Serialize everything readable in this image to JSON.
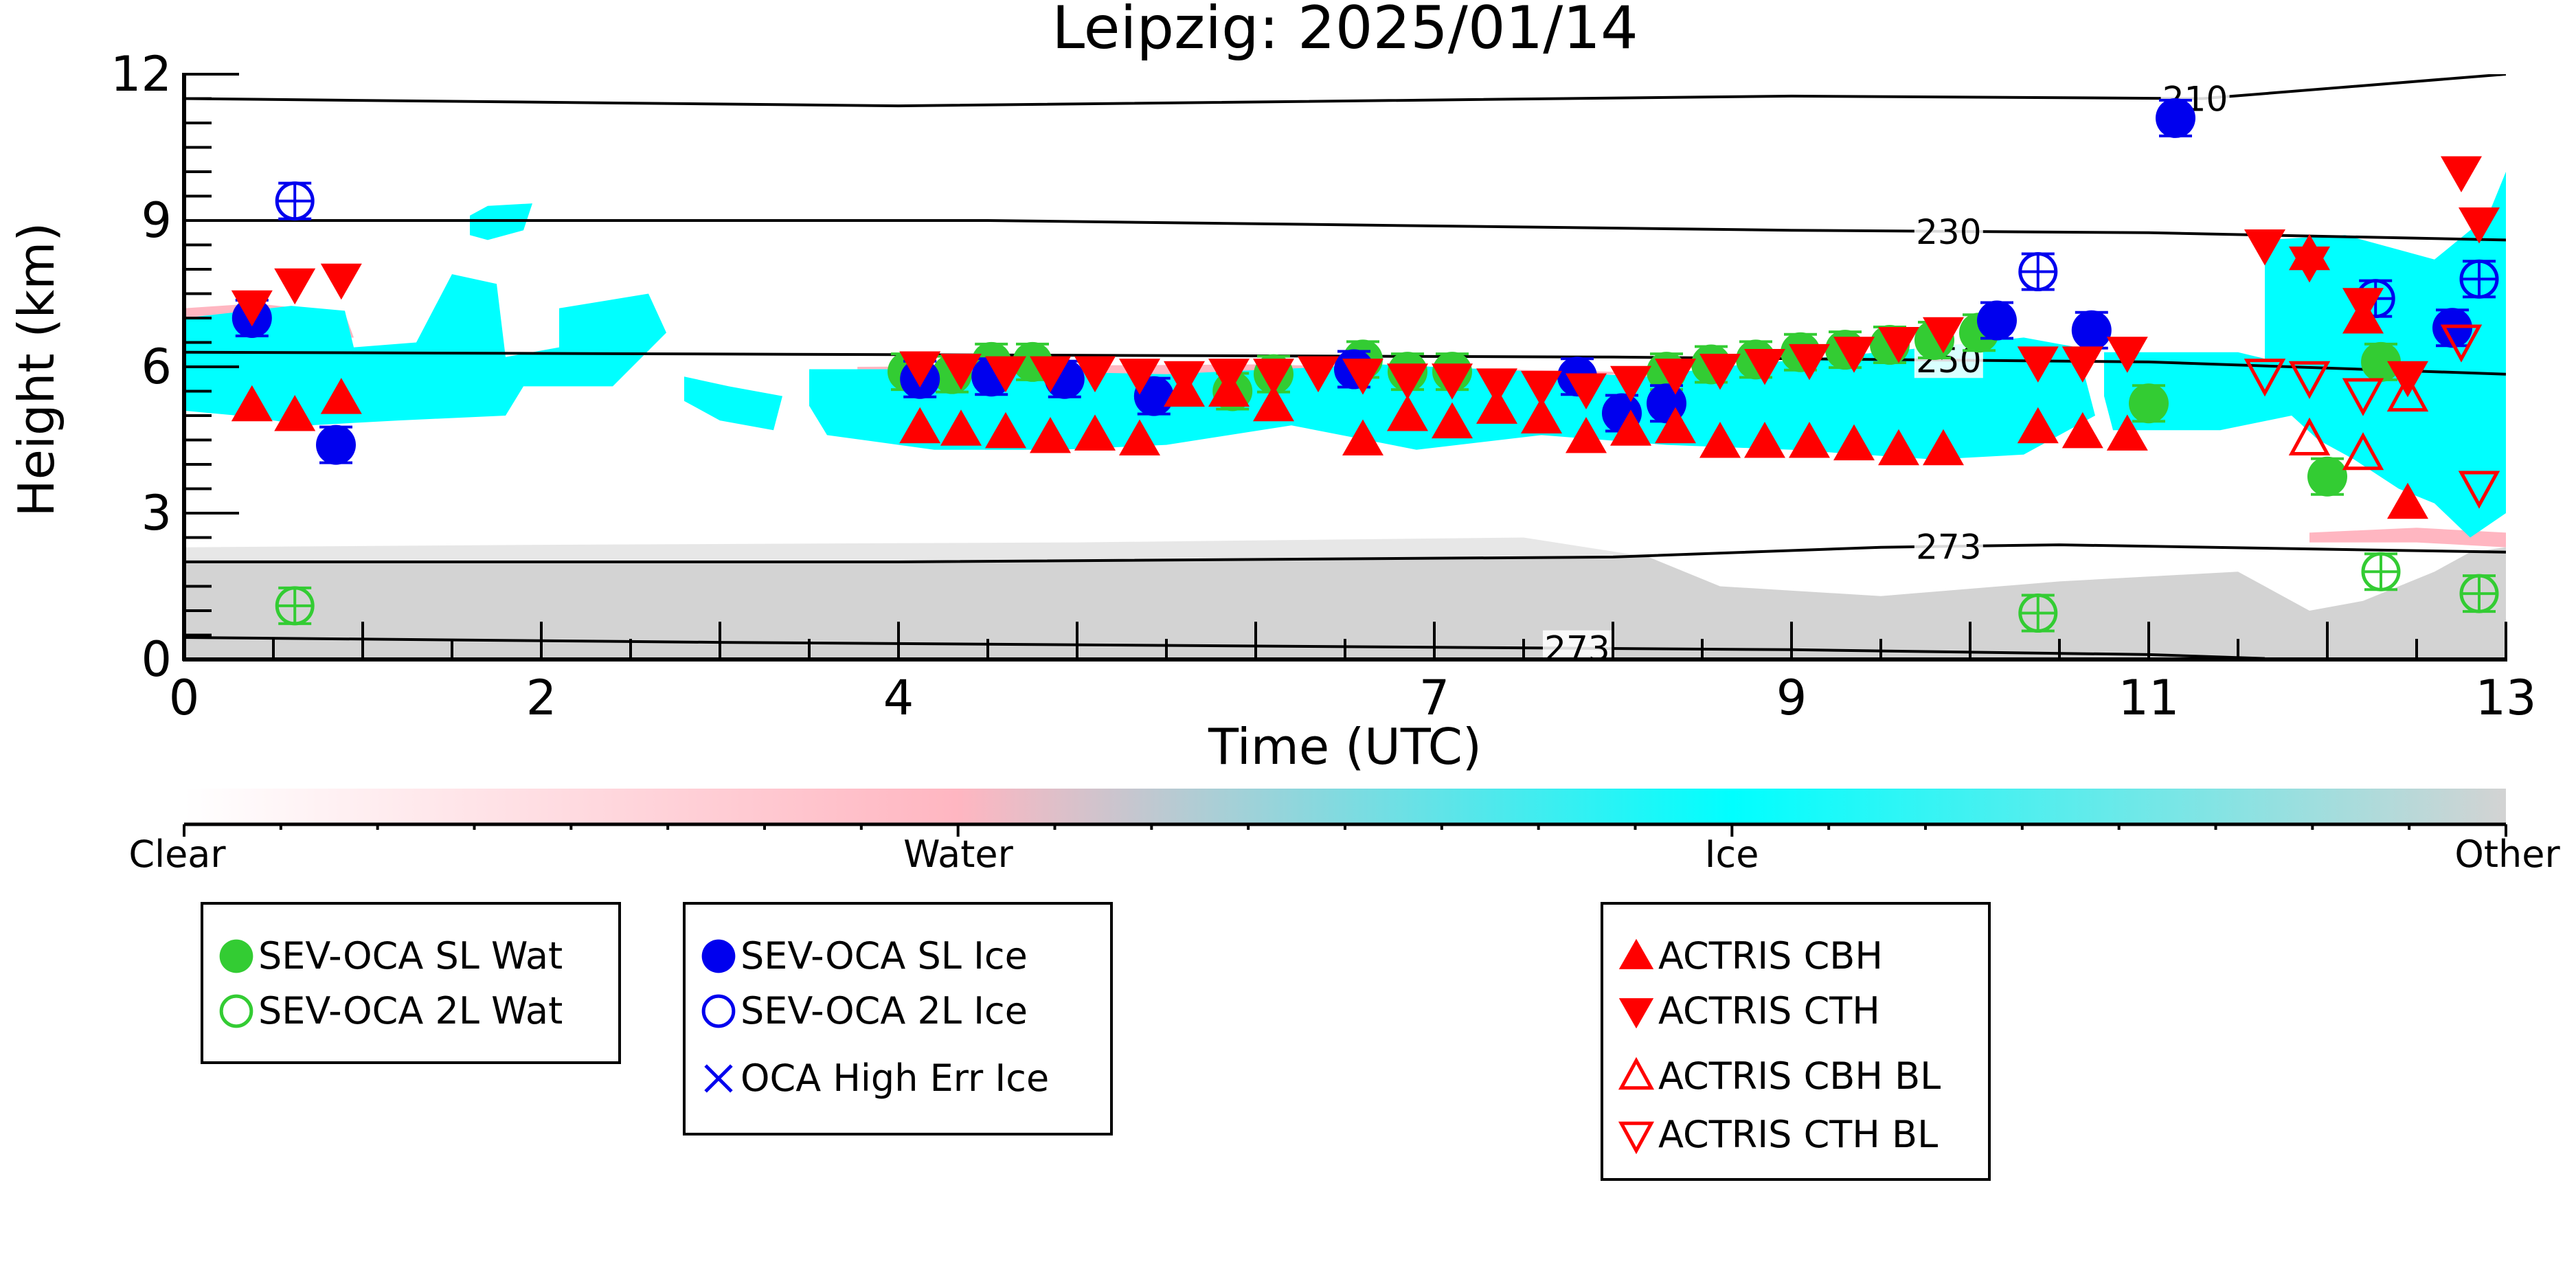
{
  "chart_data": {
    "type": "scatter",
    "title": "Leipzig: 2025/01/14",
    "xlabel": "Time (UTC)",
    "ylabel": "Height (km)",
    "xlim": [
      0,
      13
    ],
    "ylim": [
      0,
      12
    ],
    "x_ticks": [
      "0",
      "2",
      "4",
      "7",
      "9",
      "11",
      "13"
    ],
    "x_tick_values": [
      0,
      2,
      4,
      7,
      9,
      11,
      13
    ],
    "y_ticks": [
      "0",
      "3",
      "6",
      "9",
      "12"
    ],
    "y_tick_values": [
      0,
      3,
      6,
      9,
      12
    ],
    "grid": false,
    "background": "cloud classification (Clear / Water / Ice / Other) as a function of time and height",
    "classification_colorbar": {
      "labels": [
        "Clear",
        "Water",
        "Ice",
        "Other"
      ],
      "colors": [
        "#ffffff",
        "#ffb6c1",
        "#00ffff",
        "#d3d3d3"
      ]
    },
    "contours": [
      {
        "label": "210",
        "label_time": 11.26,
        "points": [
          [
            0,
            11.5
          ],
          [
            4,
            11.35
          ],
          [
            9,
            11.55
          ],
          [
            11.3,
            11.5
          ],
          [
            13,
            12.0
          ]
        ]
      },
      {
        "label": "230",
        "label_time": 9.88,
        "points": [
          [
            0,
            9.0
          ],
          [
            4.5,
            9.0
          ],
          [
            9,
            8.8
          ],
          [
            11,
            8.75
          ],
          [
            13,
            8.6
          ]
        ]
      },
      {
        "label": "250",
        "label_time": 9.88,
        "points": [
          [
            0,
            6.3
          ],
          [
            4,
            6.25
          ],
          [
            8,
            6.2
          ],
          [
            11,
            6.1
          ],
          [
            13,
            5.85
          ]
        ]
      },
      {
        "label": "273",
        "label_time": 9.88,
        "points": [
          [
            0,
            2.0
          ],
          [
            4,
            2.0
          ],
          [
            8,
            2.1
          ],
          [
            9.5,
            2.3
          ],
          [
            10.5,
            2.35
          ],
          [
            13,
            2.2
          ]
        ]
      },
      {
        "label": "273",
        "label_time": 7.8,
        "points": [
          [
            0,
            0.45
          ],
          [
            3,
            0.35
          ],
          [
            7,
            0.25
          ],
          [
            9,
            0.2
          ],
          [
            11,
            0.1
          ],
          [
            11.65,
            0.02
          ]
        ]
      }
    ],
    "series": [
      {
        "name": "SEV-OCA SL Wat",
        "marker": "filled-circle",
        "color": "#33cc33",
        "points": [
          [
            4.05,
            5.9
          ],
          [
            4.3,
            5.85
          ],
          [
            4.52,
            6.1
          ],
          [
            4.75,
            6.1
          ],
          [
            5.87,
            5.5
          ],
          [
            6.1,
            5.85
          ],
          [
            6.6,
            6.15
          ],
          [
            6.85,
            5.9
          ],
          [
            7.1,
            5.9
          ],
          [
            8.3,
            5.9
          ],
          [
            8.55,
            6.05
          ],
          [
            8.8,
            6.15
          ],
          [
            9.05,
            6.3
          ],
          [
            9.3,
            6.35
          ],
          [
            9.55,
            6.45
          ],
          [
            9.8,
            6.55
          ],
          [
            10.05,
            6.7
          ],
          [
            11.0,
            5.25
          ],
          [
            12.0,
            3.75
          ],
          [
            12.3,
            6.1
          ]
        ]
      },
      {
        "name": "SEV-OCA 2L Wat",
        "marker": "open-circle",
        "color": "#33cc33",
        "points": [
          [
            0.62,
            1.1
          ],
          [
            10.38,
            0.95
          ],
          [
            12.3,
            1.8
          ],
          [
            12.85,
            1.35
          ]
        ]
      },
      {
        "name": "SEV-OCA SL Ice",
        "marker": "filled-circle",
        "color": "#0000ee",
        "points": [
          [
            0.38,
            7.0
          ],
          [
            0.85,
            4.4
          ],
          [
            4.12,
            5.75
          ],
          [
            4.52,
            5.8
          ],
          [
            4.93,
            5.75
          ],
          [
            5.43,
            5.4
          ],
          [
            6.55,
            5.95
          ],
          [
            7.8,
            5.8
          ],
          [
            8.05,
            5.05
          ],
          [
            8.3,
            5.25
          ],
          [
            10.15,
            6.95
          ],
          [
            10.68,
            6.75
          ],
          [
            11.15,
            11.1
          ],
          [
            12.7,
            6.8
          ]
        ]
      },
      {
        "name": "SEV-OCA 2L Ice",
        "marker": "open-circle",
        "color": "#0000ee",
        "points": [
          [
            0.62,
            9.4
          ],
          [
            10.38,
            7.95
          ],
          [
            12.27,
            7.4
          ],
          [
            12.85,
            7.8
          ]
        ]
      },
      {
        "name": "OCA High Err Ice",
        "marker": "x",
        "color": "#0000ee",
        "points": []
      },
      {
        "name": "ACTRIS CBH",
        "marker": "triangle-up",
        "color": "#ff0000",
        "points": [
          [
            0.38,
            5.2
          ],
          [
            0.62,
            5.0
          ],
          [
            0.88,
            5.35
          ],
          [
            4.12,
            4.75
          ],
          [
            4.35,
            4.7
          ],
          [
            4.6,
            4.65
          ],
          [
            4.85,
            4.55
          ],
          [
            5.1,
            4.6
          ],
          [
            5.35,
            4.5
          ],
          [
            5.6,
            5.5
          ],
          [
            5.85,
            5.5
          ],
          [
            6.1,
            5.2
          ],
          [
            6.6,
            4.5
          ],
          [
            6.85,
            5.0
          ],
          [
            7.1,
            4.85
          ],
          [
            7.35,
            5.15
          ],
          [
            7.6,
            4.95
          ],
          [
            7.85,
            4.55
          ],
          [
            8.1,
            4.7
          ],
          [
            8.35,
            4.75
          ],
          [
            8.6,
            4.45
          ],
          [
            8.85,
            4.45
          ],
          [
            9.1,
            4.45
          ],
          [
            9.35,
            4.4
          ],
          [
            9.6,
            4.3
          ],
          [
            9.85,
            4.3
          ],
          [
            10.38,
            4.75
          ],
          [
            10.63,
            4.65
          ],
          [
            10.88,
            4.6
          ],
          [
            11.9,
            8.3
          ],
          [
            12.2,
            7.0
          ],
          [
            12.45,
            3.2
          ]
        ]
      },
      {
        "name": "ACTRIS CTH",
        "marker": "triangle-down",
        "color": "#ff0000",
        "points": [
          [
            0.38,
            7.25
          ],
          [
            0.62,
            7.7
          ],
          [
            0.88,
            7.8
          ],
          [
            4.12,
            6.0
          ],
          [
            4.35,
            5.95
          ],
          [
            4.6,
            5.9
          ],
          [
            4.85,
            5.9
          ],
          [
            5.1,
            5.9
          ],
          [
            5.35,
            5.85
          ],
          [
            5.6,
            5.8
          ],
          [
            5.85,
            5.85
          ],
          [
            6.1,
            5.85
          ],
          [
            6.35,
            5.9
          ],
          [
            6.6,
            5.85
          ],
          [
            6.85,
            5.75
          ],
          [
            7.1,
            5.75
          ],
          [
            7.35,
            5.65
          ],
          [
            7.6,
            5.6
          ],
          [
            7.85,
            5.55
          ],
          [
            8.1,
            5.7
          ],
          [
            8.35,
            5.85
          ],
          [
            8.6,
            5.95
          ],
          [
            8.85,
            6.05
          ],
          [
            9.1,
            6.15
          ],
          [
            9.35,
            6.3
          ],
          [
            9.6,
            6.5
          ],
          [
            9.85,
            6.7
          ],
          [
            10.38,
            6.1
          ],
          [
            10.63,
            6.1
          ],
          [
            10.88,
            6.3
          ],
          [
            11.65,
            8.5
          ],
          [
            11.9,
            8.15
          ],
          [
            12.2,
            7.3
          ],
          [
            12.45,
            5.8
          ],
          [
            12.75,
            10.0
          ],
          [
            12.85,
            8.95
          ]
        ]
      },
      {
        "name": "ACTRIS CBH BL",
        "marker": "open-triangle-up",
        "color": "#ff0000",
        "points": [
          [
            11.9,
            4.5
          ],
          [
            12.2,
            4.2
          ],
          [
            12.45,
            5.4
          ]
        ]
      },
      {
        "name": "ACTRIS CTH BL",
        "marker": "open-triangle-down",
        "color": "#ff0000",
        "points": [
          [
            11.65,
            5.85
          ],
          [
            11.9,
            5.8
          ],
          [
            12.2,
            5.45
          ],
          [
            12.75,
            6.55
          ],
          [
            12.85,
            3.55
          ]
        ]
      }
    ]
  },
  "legends": {
    "water": [
      {
        "label": "SEV-OCA SL Wat",
        "marker": "filled-circle",
        "color": "#33cc33"
      },
      {
        "label": "SEV-OCA 2L Wat",
        "marker": "open-circle",
        "color": "#33cc33"
      }
    ],
    "ice": [
      {
        "label": "SEV-OCA SL Ice",
        "marker": "filled-circle",
        "color": "#0000ee"
      },
      {
        "label": "SEV-OCA 2L Ice",
        "marker": "open-circle",
        "color": "#0000ee"
      },
      {
        "label": "OCA High Err Ice",
        "marker": "x",
        "color": "#0000ee"
      }
    ],
    "actris": [
      {
        "label": "ACTRIS CBH",
        "marker": "triangle-up",
        "color": "#ff0000"
      },
      {
        "label": "ACTRIS CTH",
        "marker": "triangle-down",
        "color": "#ff0000"
      },
      {
        "label": "ACTRIS CBH BL",
        "marker": "open-triangle-up",
        "color": "#ff0000"
      },
      {
        "label": "ACTRIS CTH BL",
        "marker": "open-triangle-down",
        "color": "#ff0000"
      }
    ]
  }
}
